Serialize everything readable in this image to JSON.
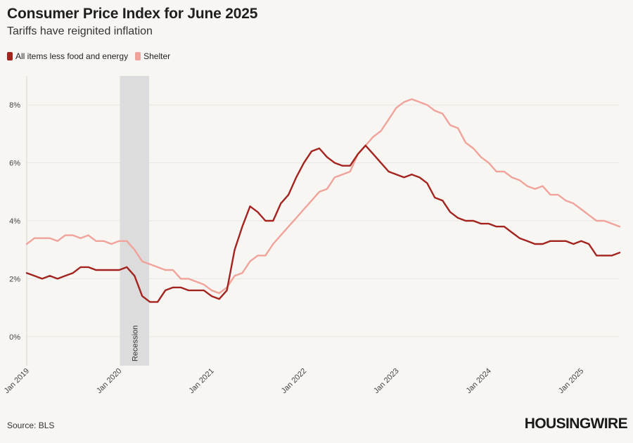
{
  "header": {
    "title": "Consumer Price Index for June 2025",
    "subtitle": "Tariffs have reignited inflation"
  },
  "footer": {
    "source": "Source: BLS",
    "brand": "HOUSINGWIRE"
  },
  "colors": {
    "core": "#a3231f",
    "shelter": "#f0a39a",
    "recession": "#dcdcdc",
    "grid": "#e9e6e2"
  },
  "chart_data": {
    "type": "line",
    "title": "Consumer Price Index for June 2025",
    "subtitle": "Tariffs have reignited inflation",
    "xlabel": "",
    "ylabel": "",
    "ylim": [
      -1,
      9
    ],
    "y_ticks": [
      0,
      2,
      4,
      6,
      8
    ],
    "y_tick_labels": [
      "0%",
      "2%",
      "4%",
      "6%",
      "8%"
    ],
    "x_tick_labels": [
      "Jan 2019",
      "Jan 2020",
      "Jan 2021",
      "Jan 2022",
      "Jan 2023",
      "Jan 2024",
      "Jan 2025"
    ],
    "x_start": "Jan 2019",
    "x_end": "Jun 2025",
    "legend_position": "top-left",
    "grid": true,
    "annotations": [
      {
        "label": "Recession",
        "start_month_index": 13,
        "end_month_index": 15
      }
    ],
    "series": [
      {
        "name": "All items less food and energy",
        "color": "#a3231f",
        "values": [
          2.2,
          2.1,
          2.0,
          2.1,
          2.0,
          2.1,
          2.2,
          2.4,
          2.4,
          2.3,
          2.3,
          2.3,
          2.3,
          2.4,
          2.1,
          1.4,
          1.2,
          1.2,
          1.6,
          1.7,
          1.7,
          1.6,
          1.6,
          1.6,
          1.4,
          1.3,
          1.6,
          3.0,
          3.8,
          4.5,
          4.3,
          4.0,
          4.0,
          4.6,
          4.9,
          5.5,
          6.0,
          6.4,
          6.5,
          6.2,
          6.0,
          5.9,
          5.9,
          6.3,
          6.6,
          6.3,
          6.0,
          5.7,
          5.6,
          5.5,
          5.6,
          5.5,
          5.3,
          4.8,
          4.7,
          4.3,
          4.1,
          4.0,
          4.0,
          3.9,
          3.9,
          3.8,
          3.8,
          3.6,
          3.4,
          3.3,
          3.2,
          3.2,
          3.3,
          3.3,
          3.3,
          3.2,
          3.3,
          3.2,
          2.8,
          2.8,
          2.8,
          2.9
        ]
      },
      {
        "name": "Shelter",
        "color": "#f0a39a",
        "values": [
          3.2,
          3.4,
          3.4,
          3.4,
          3.3,
          3.5,
          3.5,
          3.4,
          3.5,
          3.3,
          3.3,
          3.2,
          3.3,
          3.3,
          3.0,
          2.6,
          2.5,
          2.4,
          2.3,
          2.3,
          2.0,
          2.0,
          1.9,
          1.8,
          1.6,
          1.5,
          1.7,
          2.1,
          2.2,
          2.6,
          2.8,
          2.8,
          3.2,
          3.5,
          3.8,
          4.1,
          4.4,
          4.7,
          5.0,
          5.1,
          5.5,
          5.6,
          5.7,
          6.3,
          6.6,
          6.9,
          7.1,
          7.5,
          7.9,
          8.1,
          8.2,
          8.1,
          8.0,
          7.8,
          7.7,
          7.3,
          7.2,
          6.7,
          6.5,
          6.2,
          6.0,
          5.7,
          5.7,
          5.5,
          5.4,
          5.2,
          5.1,
          5.2,
          4.9,
          4.9,
          4.7,
          4.6,
          4.4,
          4.2,
          4.0,
          4.0,
          3.9,
          3.8
        ]
      }
    ]
  }
}
